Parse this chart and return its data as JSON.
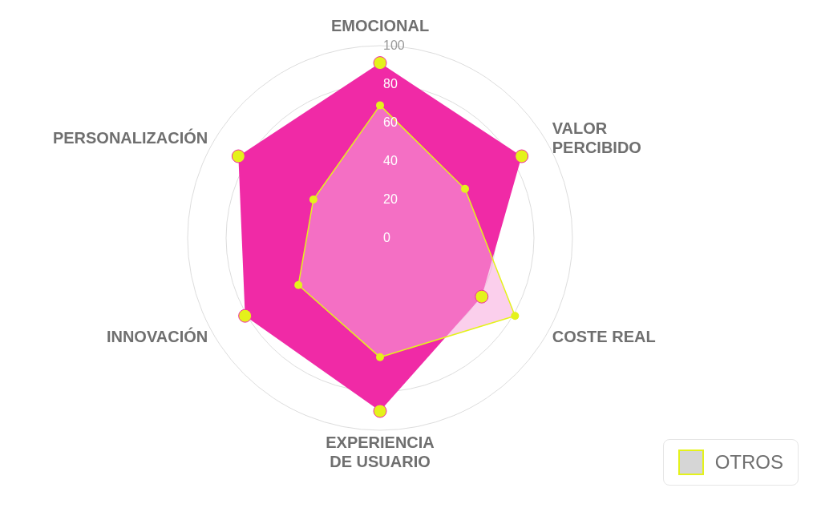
{
  "chart_data": {
    "type": "radar",
    "categories": [
      "EMOCIONAL",
      "VALOR PERCIBIDO",
      "COSTE REAL",
      "EXPERIENCIA DE USUARIO",
      "INNOVACIÓN",
      "PERSONALIZACIÓN"
    ],
    "series": [
      {
        "color": "#f02aa6",
        "values": [
          91,
          85,
          61,
          90,
          81,
          85
        ]
      },
      {
        "name": "OTROS",
        "color": "#e4f21b",
        "values": [
          69,
          51,
          81,
          62,
          49,
          40
        ]
      }
    ],
    "ylim": [
      0,
      100
    ],
    "yticks": [
      0,
      20,
      40,
      60,
      80,
      100
    ],
    "grid": true,
    "marker": "circle",
    "legend": "bottom right"
  }
}
